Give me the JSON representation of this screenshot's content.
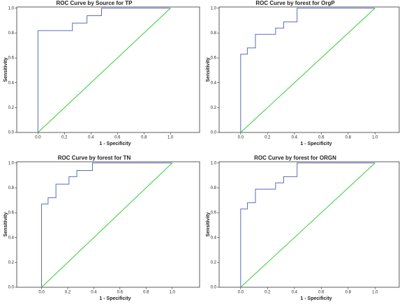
{
  "chart_data": [
    {
      "type": "line",
      "title": "ROC Curve by Source for TP",
      "x_label": "1 - Specificity",
      "y_label": "Sensitivity",
      "xlim": [
        -0.16,
        1.22
      ],
      "ylim": [
        0,
        1.01
      ],
      "xticks": [
        {
          "value": 0,
          "label": "0.0"
        },
        {
          "value": 0.2,
          "label": "0.2"
        },
        {
          "value": 0.4,
          "label": "0.4"
        },
        {
          "value": 0.6,
          "label": "0.6"
        },
        {
          "value": 0.8,
          "label": "0.8"
        },
        {
          "value": 1,
          "label": "1.0"
        }
      ],
      "yticks": [
        {
          "value": 0,
          "label": "0.0"
        },
        {
          "value": 0.2,
          "label": "0.2"
        },
        {
          "value": 0.4,
          "label": "0.4"
        },
        {
          "value": 0.6,
          "label": "0.6"
        },
        {
          "value": 0.8,
          "label": "0.8"
        },
        {
          "value": 1,
          "label": "1.0"
        }
      ],
      "series": [
        {
          "color": "#5b6bbf",
          "x": [
            0,
            0,
            0.26,
            0.26,
            0.37,
            0.37,
            0.48,
            0.48,
            1
          ],
          "values": [
            0,
            0.82,
            0.82,
            0.88,
            0.88,
            0.94,
            0.94,
            1,
            1
          ]
        },
        {
          "color": "#33cc33",
          "x": [
            0,
            1
          ],
          "values": [
            0,
            1
          ]
        }
      ]
    },
    {
      "type": "line",
      "title": "ROC Curve by forest for OrgP",
      "x_label": "1 - Specificity",
      "y_label": "Sensitivity",
      "xlim": [
        -0.16,
        1.18
      ],
      "ylim": [
        0,
        1.01
      ],
      "xticks": [
        {
          "value": 0,
          "label": "0.0"
        },
        {
          "value": 0.2,
          "label": "0.2"
        },
        {
          "value": 0.4,
          "label": "0.4"
        },
        {
          "value": 0.6,
          "label": "0.6"
        },
        {
          "value": 0.8,
          "label": "0.8"
        },
        {
          "value": 1,
          "label": "1.0"
        }
      ],
      "yticks": [
        {
          "value": 0,
          "label": "0.0"
        },
        {
          "value": 0.2,
          "label": "0.2"
        },
        {
          "value": 0.4,
          "label": "0.4"
        },
        {
          "value": 0.6,
          "label": "0.6"
        },
        {
          "value": 0.8,
          "label": "0.8"
        },
        {
          "value": 1,
          "label": "1.0"
        }
      ],
      "series": [
        {
          "color": "#5b6bbf",
          "x": [
            0,
            0,
            0.05,
            0.05,
            0.11,
            0.11,
            0.26,
            0.26,
            0.32,
            0.32,
            0.42,
            0.42,
            1
          ],
          "values": [
            0,
            0.63,
            0.63,
            0.68,
            0.68,
            0.79,
            0.79,
            0.84,
            0.84,
            0.89,
            0.89,
            1,
            1
          ]
        },
        {
          "color": "#33cc33",
          "x": [
            0,
            1
          ],
          "values": [
            0,
            1
          ]
        }
      ]
    },
    {
      "type": "line",
      "title": "ROC Curve by forest for TN",
      "x_label": "1 - Specificity",
      "y_label": "Sensitivity",
      "xlim": [
        -0.19,
        1.21
      ],
      "ylim": [
        0,
        1.01
      ],
      "xticks": [
        {
          "value": 0,
          "label": "0.0"
        },
        {
          "value": 0.2,
          "label": "0.2"
        },
        {
          "value": 0.4,
          "label": "0.4"
        },
        {
          "value": 0.6,
          "label": "0.6"
        },
        {
          "value": 0.8,
          "label": "0.8"
        },
        {
          "value": 1,
          "label": "1.0"
        }
      ],
      "yticks": [
        {
          "value": 0,
          "label": "0.0"
        },
        {
          "value": 0.2,
          "label": "0.2"
        },
        {
          "value": 0.4,
          "label": "0.4"
        },
        {
          "value": 0.6,
          "label": "0.6"
        },
        {
          "value": 0.8,
          "label": "0.8"
        },
        {
          "value": 1,
          "label": "1.0"
        }
      ],
      "series": [
        {
          "color": "#5b6bbf",
          "x": [
            0,
            0,
            0.05,
            0.05,
            0.11,
            0.11,
            0.21,
            0.21,
            0.27,
            0.27,
            0.39,
            0.39,
            1
          ],
          "values": [
            0,
            0.67,
            0.67,
            0.72,
            0.72,
            0.83,
            0.83,
            0.89,
            0.89,
            0.94,
            0.94,
            1,
            1
          ]
        },
        {
          "color": "#33cc33",
          "x": [
            0,
            1
          ],
          "values": [
            0,
            1
          ]
        }
      ]
    },
    {
      "type": "line",
      "title": "ROC Curve by forest for ORGN",
      "x_label": "1 - Specificity",
      "y_label": "Sensitivity",
      "xlim": [
        -0.16,
        1.18
      ],
      "ylim": [
        0,
        1.01
      ],
      "xticks": [
        {
          "value": 0,
          "label": "0.0"
        },
        {
          "value": 0.2,
          "label": "0.2"
        },
        {
          "value": 0.4,
          "label": "0.4"
        },
        {
          "value": 0.6,
          "label": "0.6"
        },
        {
          "value": 0.8,
          "label": "0.8"
        },
        {
          "value": 1,
          "label": "1.0"
        }
      ],
      "yticks": [
        {
          "value": 0,
          "label": "0.0"
        },
        {
          "value": 0.2,
          "label": "0.2"
        },
        {
          "value": 0.4,
          "label": "0.4"
        },
        {
          "value": 0.6,
          "label": "0.6"
        },
        {
          "value": 0.8,
          "label": "0.8"
        },
        {
          "value": 1,
          "label": "1.0"
        }
      ],
      "series": [
        {
          "color": "#5b6bbf",
          "x": [
            0,
            0,
            0.05,
            0.05,
            0.11,
            0.11,
            0.26,
            0.26,
            0.32,
            0.32,
            0.42,
            0.42,
            1
          ],
          "values": [
            0,
            0.63,
            0.63,
            0.68,
            0.68,
            0.79,
            0.79,
            0.84,
            0.84,
            0.89,
            0.89,
            1,
            1
          ]
        },
        {
          "color": "#33cc33",
          "x": [
            0,
            1
          ],
          "values": [
            0,
            1
          ]
        }
      ]
    }
  ]
}
